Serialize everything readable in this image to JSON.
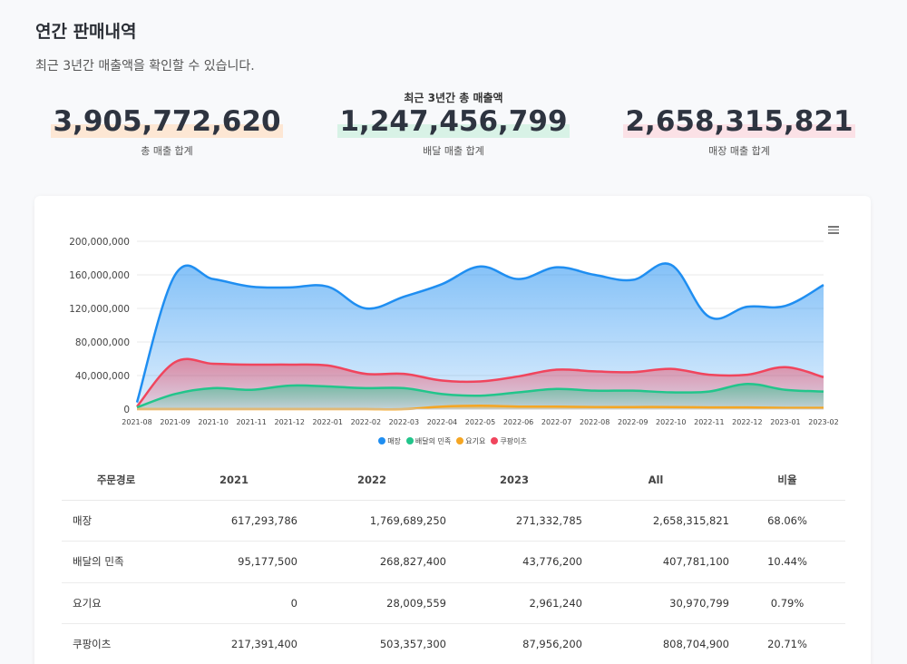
{
  "header": {
    "title": "연간 판매내역",
    "subtitle": "최근 3년간 매출액을 확인할 수 있습니다."
  },
  "stats": {
    "caption": "최근 3년간 총 매출액",
    "items": [
      {
        "value": "3,905,772,620",
        "label": "총 매출 합계"
      },
      {
        "value": "1,247,456,799",
        "label": "배달 매출 합계"
      },
      {
        "value": "2,658,315,821",
        "label": "매장 매출 합계"
      }
    ]
  },
  "chart_data": {
    "type": "area",
    "title": "",
    "xlabel": "",
    "ylabel": "",
    "ylim": [
      0,
      200000000
    ],
    "yticks": [
      "0",
      "40,000,000",
      "80,000,000",
      "120,000,000",
      "160,000,000",
      "200,000,000"
    ],
    "ytick_values": [
      0,
      40000000,
      80000000,
      120000000,
      160000000,
      200000000
    ],
    "grid": true,
    "legend_position": "bottom",
    "categories": [
      "2021-08",
      "2021-09",
      "2021-10",
      "2021-11",
      "2021-12",
      "2022-01",
      "2022-02",
      "2022-03",
      "2022-04",
      "2022-05",
      "2022-06",
      "2022-07",
      "2022-08",
      "2022-09",
      "2022-10",
      "2022-11",
      "2022-12",
      "2023-01",
      "2023-02"
    ],
    "series": [
      {
        "name": "매장",
        "color": "#1f8ef1",
        "values": [
          8000000,
          160000000,
          155000000,
          146000000,
          145000000,
          146000000,
          120000000,
          134000000,
          149000000,
          170000000,
          155000000,
          169000000,
          160000000,
          154000000,
          172000000,
          110000000,
          122000000,
          123000000,
          148000000
        ]
      },
      {
        "name": "배달의 민족",
        "color": "#22c58b",
        "values": [
          2000000,
          18000000,
          25000000,
          23000000,
          28000000,
          27000000,
          25000000,
          25000000,
          18000000,
          16000000,
          20000000,
          24000000,
          22000000,
          22000000,
          20000000,
          21000000,
          30000000,
          23000000,
          21000000
        ]
      },
      {
        "name": "요기요",
        "color": "#f5a623",
        "values": [
          0,
          0,
          0,
          0,
          0,
          0,
          0,
          0,
          3000000,
          4000000,
          3000000,
          3000000,
          2500000,
          2500000,
          2500000,
          2000000,
          2000000,
          1500000,
          1500000
        ]
      },
      {
        "name": "쿠팡이츠",
        "color": "#f0455d",
        "values": [
          3000000,
          56000000,
          54000000,
          53000000,
          53000000,
          52000000,
          42000000,
          42000000,
          34000000,
          33000000,
          39000000,
          47000000,
          45000000,
          44000000,
          48000000,
          41000000,
          41000000,
          50000000,
          38000000
        ]
      }
    ]
  },
  "table": {
    "headers": [
      "주문경로",
      "2021",
      "2022",
      "2023",
      "All",
      "비율"
    ],
    "rows": [
      [
        "매장",
        "617,293,786",
        "1,769,689,250",
        "271,332,785",
        "2,658,315,821",
        "68.06%"
      ],
      [
        "배달의 민족",
        "95,177,500",
        "268,827,400",
        "43,776,200",
        "407,781,100",
        "10.44%"
      ],
      [
        "요기요",
        "0",
        "28,009,559",
        "2,961,240",
        "30,970,799",
        "0.79%"
      ],
      [
        "쿠팡이츠",
        "217,391,400",
        "503,357,300",
        "87,956,200",
        "808,704,900",
        "20.71%"
      ]
    ]
  }
}
